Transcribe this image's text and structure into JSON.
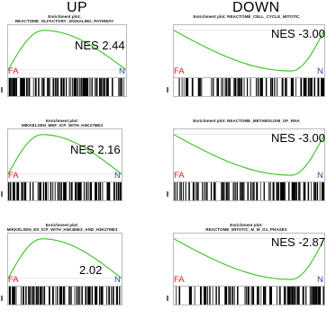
{
  "headers": {
    "up": "UP",
    "down": "DOWN"
  },
  "chart_data": [
    {
      "type": "line",
      "column": "UP",
      "title_line1": "Enrichment plot:",
      "title_line2": "REACTOME_OLFACTORY_SIGNALING_PATHWAY",
      "nes_label": "NES 2.44",
      "nes": 2.44,
      "left_label": "FA",
      "right_label": "N",
      "curve_shape": "early-peak"
    },
    {
      "type": "line",
      "column": "DOWN",
      "title_line1": "Enrichment plot: REACTOME_CELL_CYCLE_MITOTIC",
      "title_line2": "",
      "nes_label": "NES -3.00",
      "nes": -3.0,
      "left_label": "FA",
      "right_label": "N",
      "curve_shape": "late-dip"
    },
    {
      "type": "line",
      "column": "UP",
      "title_line1": "Enrichment plot:",
      "title_line2": "MIKKELSEN_MEF_ICP_WITH_H3K27ME3",
      "nes_label": "NES 2.16",
      "nes": 2.16,
      "left_label": "FA",
      "right_label": "N",
      "curve_shape": "early-peak"
    },
    {
      "type": "line",
      "column": "DOWN",
      "title_line1": "Enrichment plot: REACTOME_METABOLISM_OF_RNA",
      "title_line2": "",
      "nes_label": "NES -3.00",
      "nes": -3.0,
      "left_label": "FA",
      "right_label": "N",
      "curve_shape": "late-dip"
    },
    {
      "type": "line",
      "column": "UP",
      "title_line1": "Enrichment plot:",
      "title_line2": "MIKKELSEN_ES_ICP_WITH_H3K4ME3_AND_H3K27ME3",
      "nes_label": "2.02",
      "nes": 2.02,
      "left_label": "FA",
      "right_label": "N",
      "curve_shape": "early-peak"
    },
    {
      "type": "line",
      "column": "DOWN",
      "title_line1": "Enrichment plot:",
      "title_line2": "REACTOME_MITOTIC_M_M_G1_PHASES",
      "nes_label": "NES -2.87",
      "nes": -2.87,
      "left_label": "FA",
      "right_label": "N",
      "curve_shape": "late-dip"
    }
  ],
  "colors": {
    "curve": "#39c11f",
    "fa": "#d91c1c",
    "n": "#2f44b4",
    "hits": "#000000",
    "frame": "#b9b9b9"
  }
}
